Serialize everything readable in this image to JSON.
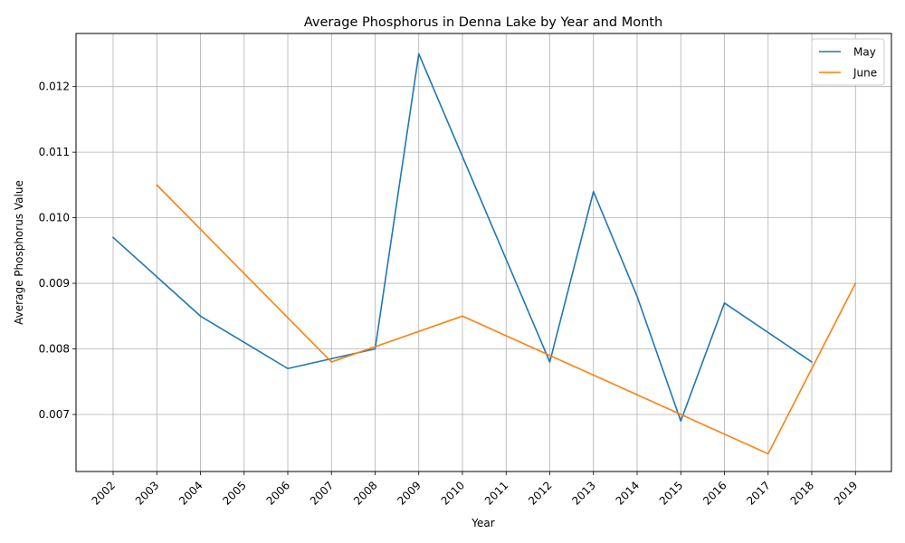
{
  "chart_data": {
    "type": "line",
    "title": "Average Phosphorus in Denna Lake by Year and Month",
    "xlabel": "Year",
    "ylabel": "Average Phosphorus Value",
    "categories": [
      "2002",
      "2003",
      "2004",
      "2005",
      "2006",
      "2007",
      "2008",
      "2009",
      "2010",
      "2011",
      "2012",
      "2013",
      "2014",
      "2015",
      "2016",
      "2017",
      "2018",
      "2019"
    ],
    "ylim": [
      0.00613,
      0.01281
    ],
    "yticks": [
      "0.007",
      "0.008",
      "0.009",
      "0.010",
      "0.011",
      "0.012"
    ],
    "grid": true,
    "legend_position": "top-right",
    "series": [
      {
        "name": "May",
        "color": "#1f77b4",
        "points": [
          {
            "x": "2002",
            "y": 0.0097
          },
          {
            "x": "2004",
            "y": 0.0085
          },
          {
            "x": "2006",
            "y": 0.0077
          },
          {
            "x": "2008",
            "y": 0.008
          },
          {
            "x": "2009",
            "y": 0.0125
          },
          {
            "x": "2012",
            "y": 0.0078
          },
          {
            "x": "2013",
            "y": 0.0104
          },
          {
            "x": "2014",
            "y": 0.0088
          },
          {
            "x": "2015",
            "y": 0.0069
          },
          {
            "x": "2016",
            "y": 0.0087
          },
          {
            "x": "2018",
            "y": 0.0078
          }
        ]
      },
      {
        "name": "June",
        "color": "#ff7f0e",
        "points": [
          {
            "x": "2003",
            "y": 0.0105
          },
          {
            "x": "2007",
            "y": 0.0078
          },
          {
            "x": "2010",
            "y": 0.0085
          },
          {
            "x": "2017",
            "y": 0.0064
          },
          {
            "x": "2019",
            "y": 0.009
          }
        ]
      }
    ]
  }
}
